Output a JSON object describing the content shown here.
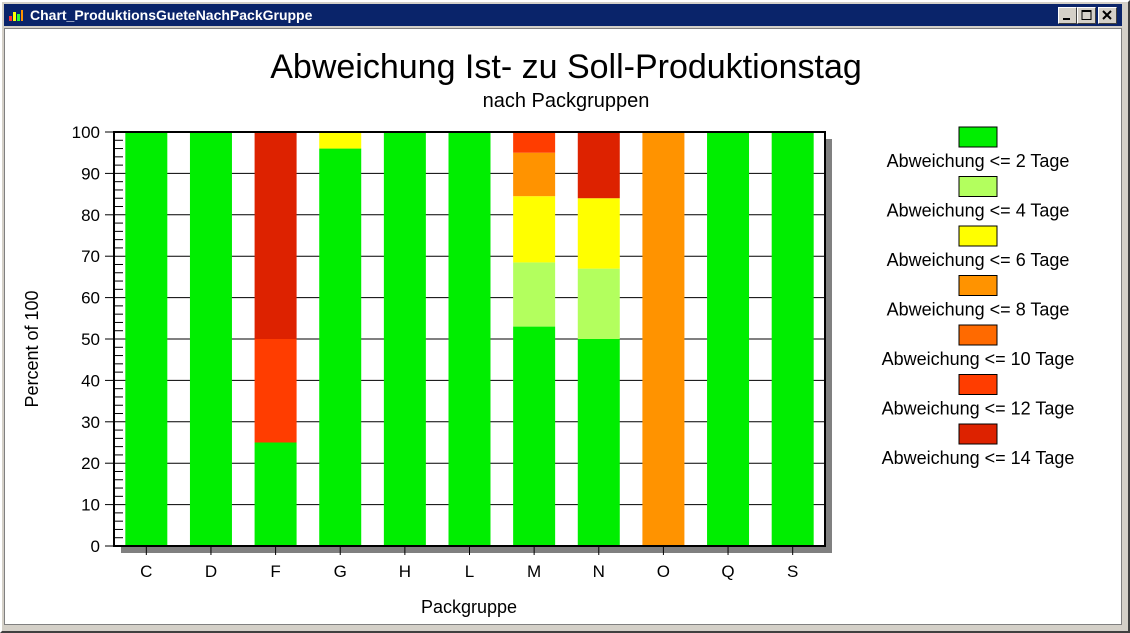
{
  "window": {
    "title": "Chart_ProduktionsGueteNachPackGruppe"
  },
  "chart_data": {
    "type": "bar",
    "stacked": true,
    "title": "Abweichung Ist- zu Soll-Produktionstag",
    "subtitle": "nach Packgruppen",
    "xlabel": "Packgruppe",
    "ylabel": "Percent of 100",
    "ylim": [
      0,
      100
    ],
    "yticks": [
      0,
      10,
      20,
      30,
      40,
      50,
      60,
      70,
      80,
      90,
      100
    ],
    "grid": true,
    "legend_position": "right",
    "categories": [
      "C",
      "D",
      "F",
      "G",
      "H",
      "L",
      "M",
      "N",
      "O",
      "Q",
      "S"
    ],
    "series": [
      {
        "name": "Abweichung <= 2 Tage",
        "color": "#00ee00",
        "values": [
          100,
          100,
          25,
          96,
          100,
          100,
          53,
          50,
          0,
          100,
          100
        ]
      },
      {
        "name": "Abweichung <= 4 Tage",
        "color": "#b3ff5e",
        "values": [
          0,
          0,
          0,
          0,
          0,
          0,
          15.5,
          17,
          0,
          0,
          0
        ]
      },
      {
        "name": "Abweichung <= 6 Tage",
        "color": "#ffff00",
        "values": [
          0,
          0,
          0,
          4,
          0,
          0,
          16,
          17,
          0,
          0,
          0
        ]
      },
      {
        "name": "Abweichung <= 8 Tage",
        "color": "#ff9300",
        "values": [
          0,
          0,
          0,
          0,
          0,
          0,
          10.5,
          0,
          100,
          0,
          0
        ]
      },
      {
        "name": "Abweichung <= 10 Tage",
        "color": "#ff6a00",
        "values": [
          0,
          0,
          0,
          0,
          0,
          0,
          0,
          0,
          0,
          0,
          0
        ]
      },
      {
        "name": "Abweichung <= 12 Tage",
        "color": "#ff3d00",
        "values": [
          0,
          0,
          25,
          0,
          0,
          0,
          5,
          0,
          0,
          0,
          0
        ]
      },
      {
        "name": "Abweichung <= 14 Tage",
        "color": "#dd2200",
        "values": [
          0,
          0,
          50,
          0,
          0,
          0,
          0,
          16,
          0,
          0,
          0
        ]
      }
    ]
  }
}
